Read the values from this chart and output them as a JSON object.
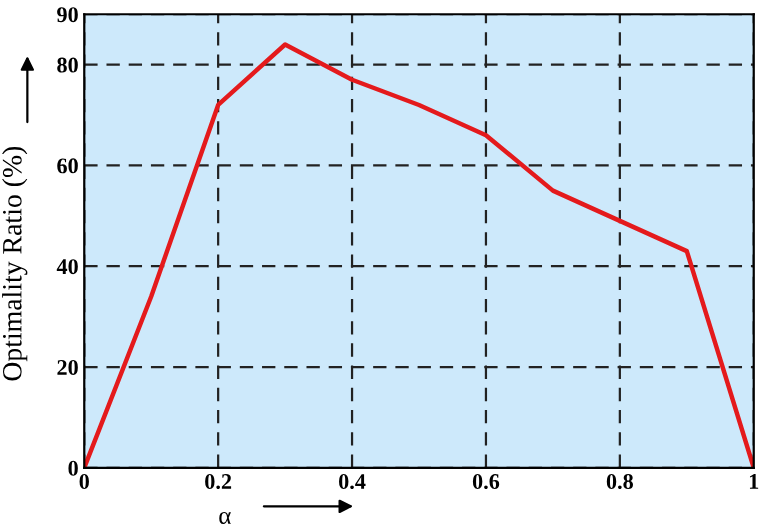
{
  "chart_data": {
    "type": "line",
    "xlabel": "α",
    "ylabel": "Optimality Ratio (%)",
    "x": [
      0,
      0.1,
      0.2,
      0.3,
      0.4,
      0.5,
      0.6,
      0.7,
      0.8,
      0.9,
      1
    ],
    "series": [
      {
        "color": "#e41a1c",
        "values": [
          0,
          34,
          72,
          84,
          77,
          72,
          66,
          55,
          49,
          43,
          0
        ]
      }
    ],
    "xlim": [
      0,
      1
    ],
    "xticks": [
      0,
      0.2,
      0.4,
      0.6,
      0.8,
      1
    ],
    "ylim": [
      0,
      90
    ],
    "yticks": [
      0,
      20,
      40,
      60,
      80,
      90
    ],
    "grid": true,
    "line_style": "solid",
    "marker": "none",
    "legend": false
  }
}
